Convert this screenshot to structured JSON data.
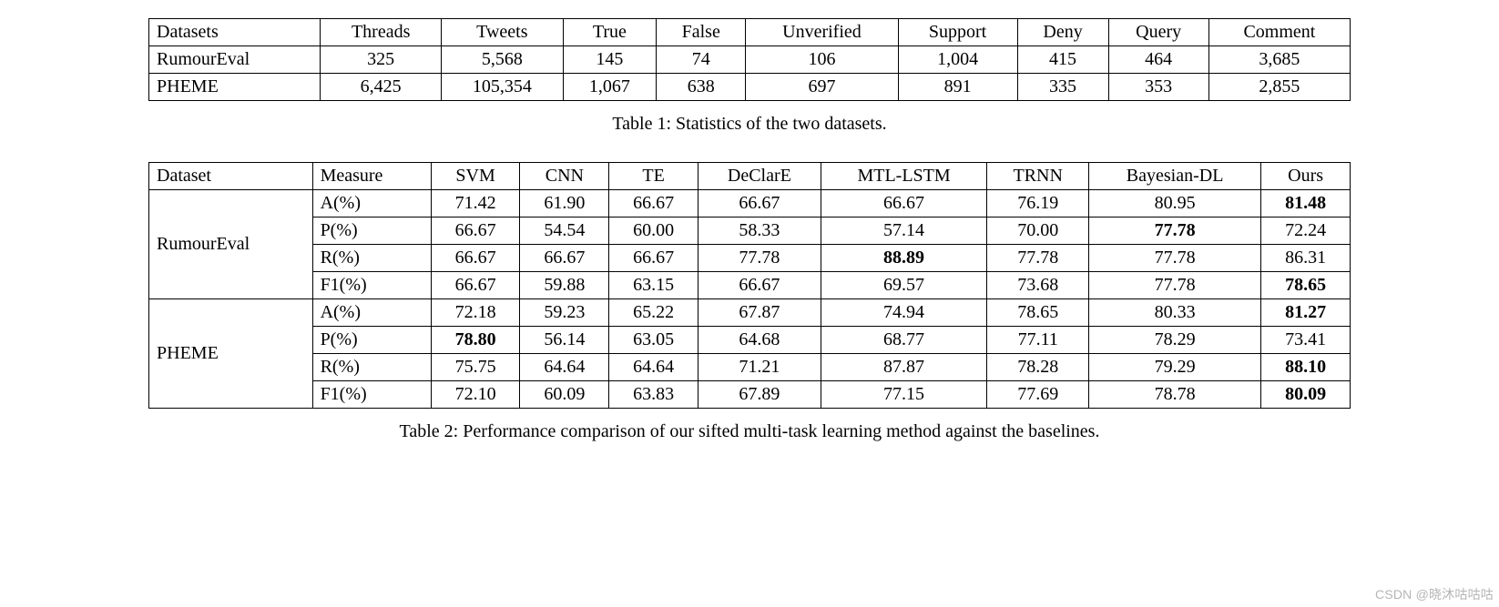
{
  "table1": {
    "columns": [
      "Datasets",
      "Threads",
      "Tweets",
      "True",
      "False",
      "Unverified",
      "Support",
      "Deny",
      "Query",
      "Comment"
    ],
    "rows": [
      [
        "RumourEval",
        "325",
        "5,568",
        "145",
        "74",
        "106",
        "1,004",
        "415",
        "464",
        "3,685"
      ],
      [
        "PHEME",
        "6,425",
        "105,354",
        "1,067",
        "638",
        "697",
        "891",
        "335",
        "353",
        "2,855"
      ]
    ],
    "caption": "Table 1: Statistics of the two datasets."
  },
  "table2": {
    "columns": [
      "Dataset",
      "Measure",
      "SVM",
      "CNN",
      "TE",
      "DeClarE",
      "MTL-LSTM",
      "TRNN",
      "Bayesian-DL",
      "Ours"
    ],
    "groups": [
      {
        "dataset": "RumourEval",
        "rows": [
          {
            "measure": "A(%)",
            "vals": [
              "71.42",
              "61.90",
              "66.67",
              "66.67",
              "66.67",
              "76.19",
              "80.95",
              "81.48"
            ],
            "bold": [
              false,
              false,
              false,
              false,
              false,
              false,
              false,
              true
            ]
          },
          {
            "measure": "P(%)",
            "vals": [
              "66.67",
              "54.54",
              "60.00",
              "58.33",
              "57.14",
              "70.00",
              "77.78",
              "72.24"
            ],
            "bold": [
              false,
              false,
              false,
              false,
              false,
              false,
              true,
              false
            ]
          },
          {
            "measure": "R(%)",
            "vals": [
              "66.67",
              "66.67",
              "66.67",
              "77.78",
              "88.89",
              "77.78",
              "77.78",
              "86.31"
            ],
            "bold": [
              false,
              false,
              false,
              false,
              true,
              false,
              false,
              false
            ]
          },
          {
            "measure": "F1(%)",
            "vals": [
              "66.67",
              "59.88",
              "63.15",
              "66.67",
              "69.57",
              "73.68",
              "77.78",
              "78.65"
            ],
            "bold": [
              false,
              false,
              false,
              false,
              false,
              false,
              false,
              true
            ]
          }
        ]
      },
      {
        "dataset": "PHEME",
        "rows": [
          {
            "measure": "A(%)",
            "vals": [
              "72.18",
              "59.23",
              "65.22",
              "67.87",
              "74.94",
              "78.65",
              "80.33",
              "81.27"
            ],
            "bold": [
              false,
              false,
              false,
              false,
              false,
              false,
              false,
              true
            ]
          },
          {
            "measure": "P(%)",
            "vals": [
              "78.80",
              "56.14",
              "63.05",
              "64.68",
              "68.77",
              "77.11",
              "78.29",
              "73.41"
            ],
            "bold": [
              true,
              false,
              false,
              false,
              false,
              false,
              false,
              false
            ]
          },
          {
            "measure": "R(%)",
            "vals": [
              "75.75",
              "64.64",
              "64.64",
              "71.21",
              "87.87",
              "78.28",
              "79.29",
              "88.10"
            ],
            "bold": [
              false,
              false,
              false,
              false,
              false,
              false,
              false,
              true
            ]
          },
          {
            "measure": "F1(%)",
            "vals": [
              "72.10",
              "60.09",
              "63.83",
              "67.89",
              "77.15",
              "77.69",
              "78.78",
              "80.09"
            ],
            "bold": [
              false,
              false,
              false,
              false,
              false,
              false,
              false,
              true
            ]
          }
        ]
      }
    ],
    "caption": "Table 2: Performance comparison of our sifted multi-task learning method against the baselines."
  },
  "watermark": "CSDN @晓沐咕咕咕"
}
